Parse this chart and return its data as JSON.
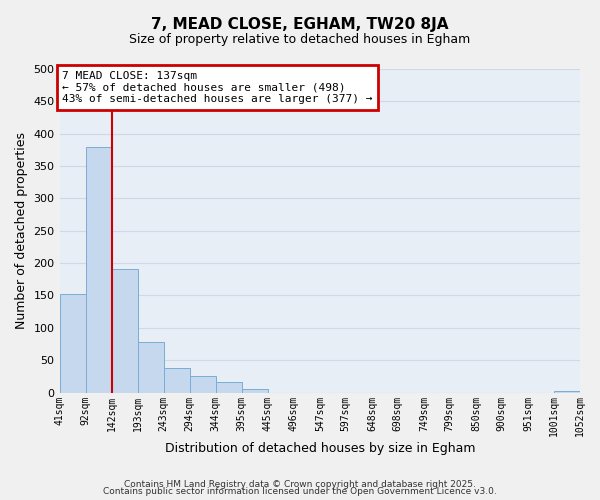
{
  "title": "7, MEAD CLOSE, EGHAM, TW20 8JA",
  "subtitle": "Size of property relative to detached houses in Egham",
  "xlabel": "Distribution of detached houses by size in Egham",
  "ylabel": "Number of detached properties",
  "bar_left_edges": [
    41,
    92,
    142,
    193,
    243,
    294,
    344,
    395,
    445,
    496,
    547,
    597,
    648,
    698,
    749,
    799,
    850,
    900,
    951,
    1001
  ],
  "bar_heights": [
    152,
    380,
    191,
    78,
    38,
    25,
    16,
    6,
    0,
    0,
    0,
    0,
    0,
    0,
    0,
    0,
    0,
    0,
    0,
    3
  ],
  "bin_width": 51,
  "bar_color": "#c5d8ee",
  "bar_edge_color": "#7aadd4",
  "x_tick_labels": [
    "41sqm",
    "92sqm",
    "142sqm",
    "193sqm",
    "243sqm",
    "294sqm",
    "344sqm",
    "395sqm",
    "445sqm",
    "496sqm",
    "547sqm",
    "597sqm",
    "648sqm",
    "698sqm",
    "749sqm",
    "799sqm",
    "850sqm",
    "900sqm",
    "951sqm",
    "1001sqm",
    "1052sqm"
  ],
  "ylim": [
    0,
    500
  ],
  "yticks": [
    0,
    50,
    100,
    150,
    200,
    250,
    300,
    350,
    400,
    450,
    500
  ],
  "vline_x": 142,
  "vline_color": "#cc0000",
  "annotation_title": "7 MEAD CLOSE: 137sqm",
  "annotation_line1": "← 57% of detached houses are smaller (498)",
  "annotation_line2": "43% of semi-detached houses are larger (377) →",
  "annotation_box_color": "#ffffff",
  "annotation_box_edge_color": "#cc0000",
  "grid_color": "#d0d8e8",
  "bg_color": "#e8eef6",
  "fig_bg_color": "#f0f0f0",
  "footer_line1": "Contains HM Land Registry data © Crown copyright and database right 2025.",
  "footer_line2": "Contains public sector information licensed under the Open Government Licence v3.0."
}
